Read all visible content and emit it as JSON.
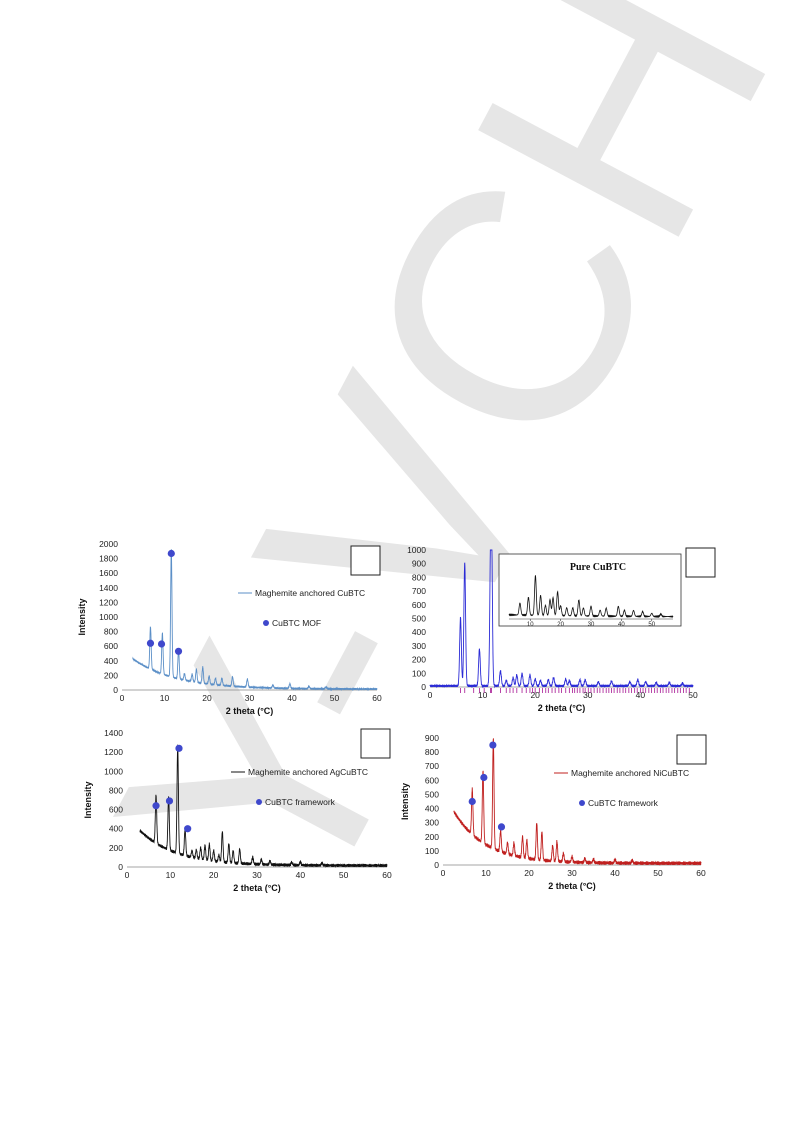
{
  "watermark": {
    "text": "Y-VCH",
    "color": "#e6e6e6"
  },
  "chart_data": [
    {
      "id": "panel-a",
      "type": "line",
      "xlabel": "2 theta (°C)",
      "ylabel": "Intensity",
      "xlim": [
        0,
        60
      ],
      "ylim": [
        0,
        2000
      ],
      "xticks": [
        0,
        10,
        20,
        30,
        40,
        50,
        60
      ],
      "yticks": [
        0,
        200,
        400,
        600,
        800,
        1000,
        1200,
        1400,
        1600,
        1800,
        2000
      ],
      "color": "#5b8fc7",
      "legend": [
        {
          "kind": "line",
          "label": "Maghemite anchored CuBTC"
        },
        {
          "kind": "marker",
          "label": "CuBTC MOF"
        }
      ],
      "marker_color": "#3f48cc",
      "baseline_start": [
        2.5,
        430
      ],
      "baseline_decay": 30,
      "baseline_floor": 12,
      "peaks": [
        [
          6.7,
          580
        ],
        [
          9.5,
          560
        ],
        [
          11.6,
          1740
        ],
        [
          13.3,
          400
        ],
        [
          14.7,
          90
        ],
        [
          16.5,
          100
        ],
        [
          17.5,
          180
        ],
        [
          19.0,
          220
        ],
        [
          20.5,
          110
        ],
        [
          22.0,
          90
        ],
        [
          23.5,
          100
        ],
        [
          26.0,
          130
        ],
        [
          29.5,
          110
        ],
        [
          35.5,
          40
        ],
        [
          39.5,
          60
        ],
        [
          44.0,
          30
        ],
        [
          48.0,
          25
        ]
      ],
      "markers": [
        [
          6.7,
          640
        ],
        [
          9.3,
          630
        ],
        [
          11.6,
          1870
        ],
        [
          13.3,
          530
        ]
      ]
    },
    {
      "id": "panel-b",
      "type": "line",
      "xlabel": "2 theta (°C)",
      "ylabel": "",
      "xlim": [
        0,
        50
      ],
      "ylim": [
        0,
        1000
      ],
      "xticks": [
        0,
        10,
        20,
        30,
        40,
        50
      ],
      "yticks": [
        0,
        100,
        200,
        300,
        400,
        500,
        600,
        700,
        800,
        900,
        1000
      ],
      "color": "#2b2bd6",
      "legend": [],
      "inset_title": "Pure CuBTC",
      "baseline_floor": 8,
      "peaks": [
        [
          5.8,
          500
        ],
        [
          6.6,
          900
        ],
        [
          9.4,
          270
        ],
        [
          11.5,
          690
        ],
        [
          11.7,
          1000
        ],
        [
          13.4,
          110
        ],
        [
          14.5,
          40
        ],
        [
          15.8,
          60
        ],
        [
          16.5,
          80
        ],
        [
          17.5,
          90
        ],
        [
          19.0,
          80
        ],
        [
          20.0,
          50
        ],
        [
          21.0,
          40
        ],
        [
          22.5,
          45
        ],
        [
          23.5,
          60
        ],
        [
          25.8,
          50
        ],
        [
          26.5,
          40
        ],
        [
          28.5,
          45
        ],
        [
          29.5,
          45
        ],
        [
          32.0,
          30
        ],
        [
          34.5,
          35
        ],
        [
          38.0,
          30
        ],
        [
          39.5,
          45
        ],
        [
          41.0,
          30
        ],
        [
          43.0,
          25
        ],
        [
          45.5,
          25
        ],
        [
          48.0,
          20
        ]
      ],
      "reflection_ticks": [
        5.8,
        6.6,
        8.3,
        9.4,
        10.3,
        11.5,
        11.7,
        13.4,
        14.5,
        15.2,
        15.8,
        16.5,
        17.5,
        18.3,
        19.0,
        19.5,
        20.0,
        20.8,
        21.4,
        22.0,
        22.5,
        23.2,
        23.8,
        24.5,
        25.0,
        25.8,
        26.5,
        27.1,
        27.5,
        28.0,
        28.5,
        29.1,
        29.5,
        30.1,
        30.6,
        31.2,
        31.8,
        32.3,
        32.9,
        33.5,
        34.0,
        34.5,
        35.0,
        35.6,
        36.1,
        36.7,
        37.2,
        37.8,
        38.3,
        38.9,
        39.4,
        40.0,
        40.5,
        41.0,
        41.6,
        42.1,
        42.7,
        43.2,
        43.8,
        44.3,
        44.9,
        45.4,
        46.0,
        46.5,
        47.1,
        47.6,
        48.2,
        48.7,
        49.3
      ],
      "inset": {
        "xticks": [
          10,
          20,
          30,
          40,
          50
        ],
        "peaks": [
          [
            6.6,
            30
          ],
          [
            9.4,
            45
          ],
          [
            11.7,
            100
          ],
          [
            13.4,
            50
          ],
          [
            15.0,
            25
          ],
          [
            16.5,
            40
          ],
          [
            17.5,
            45
          ],
          [
            19.0,
            60
          ],
          [
            20.0,
            25
          ],
          [
            22.0,
            20
          ],
          [
            24.0,
            20
          ],
          [
            26.0,
            40
          ],
          [
            27.5,
            20
          ],
          [
            30.0,
            25
          ],
          [
            33.0,
            15
          ],
          [
            35.0,
            20
          ],
          [
            39.0,
            25
          ],
          [
            41.0,
            15
          ],
          [
            44.0,
            15
          ],
          [
            47.0,
            12
          ],
          [
            50.0,
            8
          ],
          [
            53.0,
            6
          ]
        ],
        "xlim": [
          3,
          57
        ]
      }
    },
    {
      "id": "panel-c",
      "type": "line",
      "xlabel": "2 theta (°C)",
      "ylabel": "Intensity",
      "xlim": [
        0,
        60
      ],
      "ylim": [
        0,
        1400
      ],
      "xticks": [
        0,
        10,
        20,
        30,
        40,
        50,
        60
      ],
      "yticks": [
        0,
        200,
        400,
        600,
        800,
        1000,
        1200,
        1400
      ],
      "color": "#111111",
      "legend": [
        {
          "kind": "line",
          "label": "Maghemite anchored AgCuBTC"
        },
        {
          "kind": "marker",
          "label": "CuBTC framework"
        }
      ],
      "marker_color": "#3f48cc",
      "baseline_start": [
        3,
        380
      ],
      "baseline_decay": 25,
      "baseline_floor": 15,
      "peaks": [
        [
          6.7,
          500
        ],
        [
          9.6,
          560
        ],
        [
          11.7,
          1130
        ],
        [
          13.4,
          280
        ],
        [
          15.0,
          70
        ],
        [
          16.0,
          90
        ],
        [
          17.0,
          120
        ],
        [
          18.0,
          150
        ],
        [
          19.0,
          170
        ],
        [
          20.0,
          110
        ],
        [
          21.2,
          70
        ],
        [
          22.0,
          320
        ],
        [
          23.5,
          200
        ],
        [
          24.5,
          130
        ],
        [
          26.0,
          150
        ],
        [
          29.0,
          70
        ],
        [
          31.0,
          50
        ],
        [
          33.0,
          40
        ],
        [
          38.0,
          30
        ],
        [
          40.0,
          35
        ],
        [
          45.0,
          25
        ]
      ],
      "markers": [
        [
          6.7,
          640
        ],
        [
          9.8,
          690
        ],
        [
          12.0,
          1240
        ],
        [
          14.0,
          400
        ]
      ]
    },
    {
      "id": "panel-d",
      "type": "line",
      "xlabel": "2 theta (°C)",
      "ylabel": "Intensity",
      "xlim": [
        0,
        60
      ],
      "ylim": [
        0,
        900
      ],
      "xticks": [
        0,
        10,
        20,
        30,
        40,
        50,
        60
      ],
      "yticks": [
        0,
        100,
        200,
        300,
        400,
        500,
        600,
        700,
        800,
        900
      ],
      "color": "#c0201f",
      "legend": [
        {
          "kind": "line",
          "label": "Maghemite anchored NiCuBTC"
        },
        {
          "kind": "marker",
          "label": "CuBTC framework"
        }
      ],
      "marker_color": "#3f48cc",
      "baseline_start": [
        2.5,
        380
      ],
      "baseline_decay": 22,
      "baseline_floor": 12,
      "peaks": [
        [
          6.8,
          320
        ],
        [
          9.3,
          510
        ],
        [
          11.7,
          780
        ],
        [
          13.4,
          150
        ],
        [
          15.0,
          80
        ],
        [
          16.5,
          90
        ],
        [
          18.5,
          150
        ],
        [
          19.5,
          130
        ],
        [
          21.8,
          260
        ],
        [
          23.0,
          200
        ],
        [
          25.5,
          110
        ],
        [
          26.5,
          140
        ],
        [
          28.0,
          60
        ],
        [
          30.0,
          40
        ],
        [
          33.0,
          30
        ],
        [
          35.0,
          25
        ],
        [
          40.0,
          25
        ],
        [
          44.0,
          20
        ]
      ],
      "markers": [
        [
          6.8,
          450
        ],
        [
          9.5,
          620
        ],
        [
          11.6,
          850
        ],
        [
          13.6,
          270
        ]
      ]
    }
  ]
}
